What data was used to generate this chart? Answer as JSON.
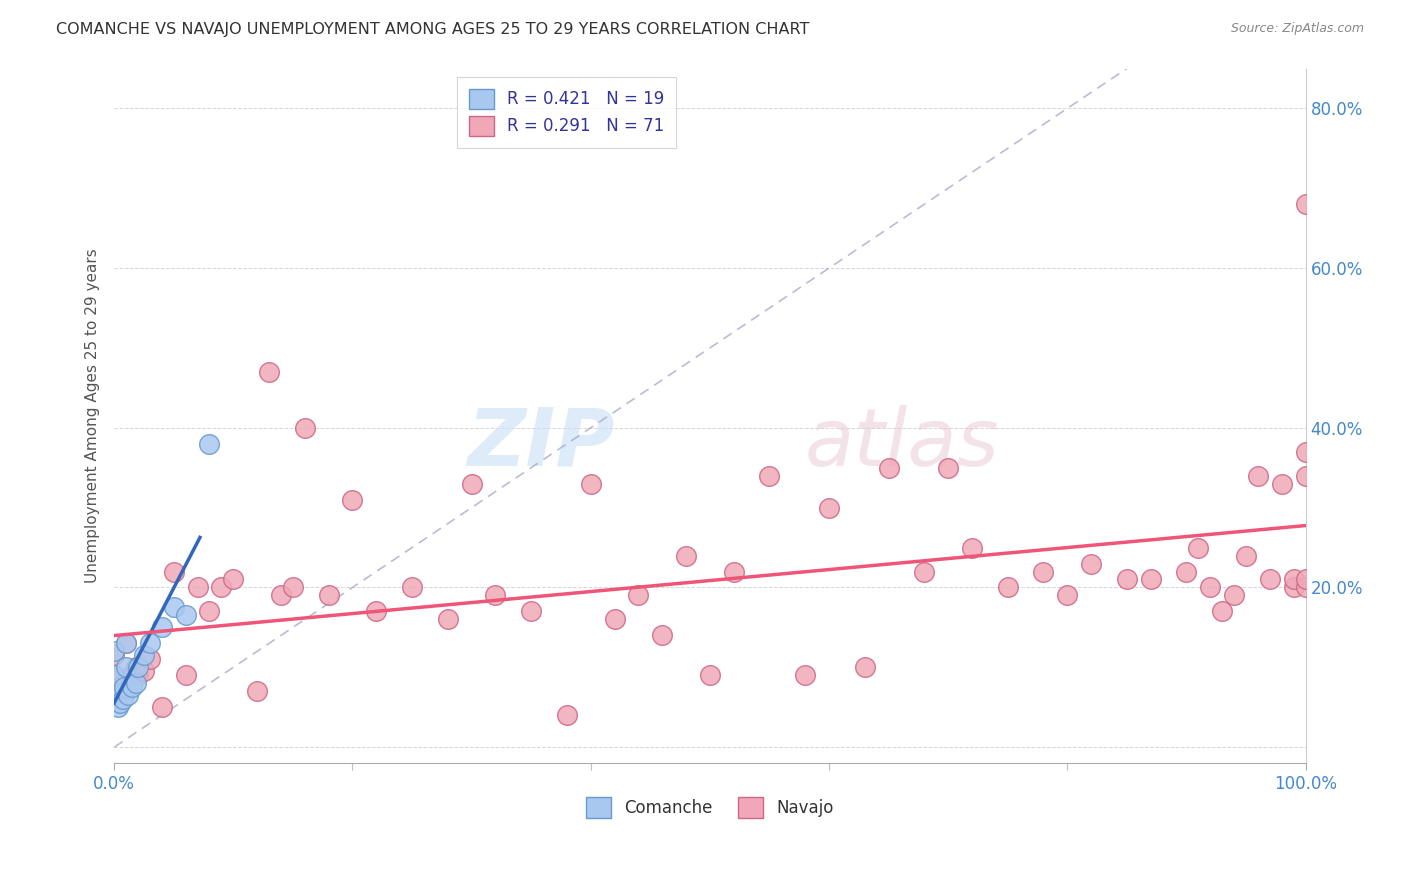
{
  "title": "COMANCHE VS NAVAJO UNEMPLOYMENT AMONG AGES 25 TO 29 YEARS CORRELATION CHART",
  "source": "Source: ZipAtlas.com",
  "ylabel": "Unemployment Among Ages 25 to 29 years",
  "xlim": [
    0,
    1.0
  ],
  "ylim": [
    -0.02,
    0.85
  ],
  "xticks": [
    0.0,
    0.2,
    0.4,
    0.6,
    0.8,
    1.0
  ],
  "yticks": [
    0.0,
    0.2,
    0.4,
    0.6,
    0.8
  ],
  "comanche_color": "#a8c8f0",
  "navajo_color": "#f0a8b8",
  "comanche_edge": "#6699cc",
  "navajo_edge": "#cc6688",
  "regression_comanche_color": "#3366bb",
  "regression_navajo_color": "#ee5577",
  "diagonal_color": "#aaaacc",
  "background_color": "#ffffff",
  "grid_color": "#cccccc",
  "legend_R_comanche": "R = 0.421",
  "legend_N_comanche": "N = 19",
  "legend_R_navajo": "R = 0.291",
  "legend_N_navajo": "N = 71",
  "legend_label_comanche": "Comanche",
  "legend_label_navajo": "Navajo",
  "title_color": "#333333",
  "axis_label_color": "#555555",
  "tick_color": "#4488cc",
  "watermark_zip": "ZIP",
  "watermark_atlas": "atlas",
  "comanche_x": [
    0.0,
    0.0,
    0.0,
    0.003,
    0.005,
    0.007,
    0.008,
    0.01,
    0.01,
    0.012,
    0.015,
    0.018,
    0.02,
    0.025,
    0.03,
    0.04,
    0.05,
    0.06,
    0.08
  ],
  "comanche_y": [
    0.07,
    0.09,
    0.12,
    0.05,
    0.055,
    0.06,
    0.075,
    0.1,
    0.13,
    0.065,
    0.075,
    0.08,
    0.1,
    0.115,
    0.13,
    0.15,
    0.175,
    0.165,
    0.38
  ],
  "navajo_x": [
    0.0,
    0.0,
    0.0,
    0.003,
    0.005,
    0.008,
    0.01,
    0.01,
    0.015,
    0.018,
    0.02,
    0.025,
    0.03,
    0.04,
    0.05,
    0.06,
    0.07,
    0.08,
    0.09,
    0.1,
    0.12,
    0.13,
    0.14,
    0.15,
    0.16,
    0.18,
    0.2,
    0.22,
    0.25,
    0.28,
    0.3,
    0.32,
    0.35,
    0.38,
    0.4,
    0.42,
    0.44,
    0.46,
    0.48,
    0.5,
    0.52,
    0.55,
    0.58,
    0.6,
    0.63,
    0.65,
    0.68,
    0.7,
    0.72,
    0.75,
    0.78,
    0.8,
    0.82,
    0.85,
    0.87,
    0.9,
    0.91,
    0.92,
    0.93,
    0.94,
    0.95,
    0.96,
    0.97,
    0.98,
    0.99,
    0.99,
    1.0,
    1.0,
    1.0,
    1.0,
    1.0
  ],
  "navajo_y": [
    0.07,
    0.09,
    0.115,
    0.065,
    0.07,
    0.08,
    0.07,
    0.13,
    0.09,
    0.1,
    0.09,
    0.095,
    0.11,
    0.05,
    0.22,
    0.09,
    0.2,
    0.17,
    0.2,
    0.21,
    0.07,
    0.47,
    0.19,
    0.2,
    0.4,
    0.19,
    0.31,
    0.17,
    0.2,
    0.16,
    0.33,
    0.19,
    0.17,
    0.04,
    0.33,
    0.16,
    0.19,
    0.14,
    0.24,
    0.09,
    0.22,
    0.34,
    0.09,
    0.3,
    0.1,
    0.35,
    0.22,
    0.35,
    0.25,
    0.2,
    0.22,
    0.19,
    0.23,
    0.21,
    0.21,
    0.22,
    0.25,
    0.2,
    0.17,
    0.19,
    0.24,
    0.34,
    0.21,
    0.33,
    0.2,
    0.21,
    0.37,
    0.2,
    0.21,
    0.34,
    0.68
  ]
}
